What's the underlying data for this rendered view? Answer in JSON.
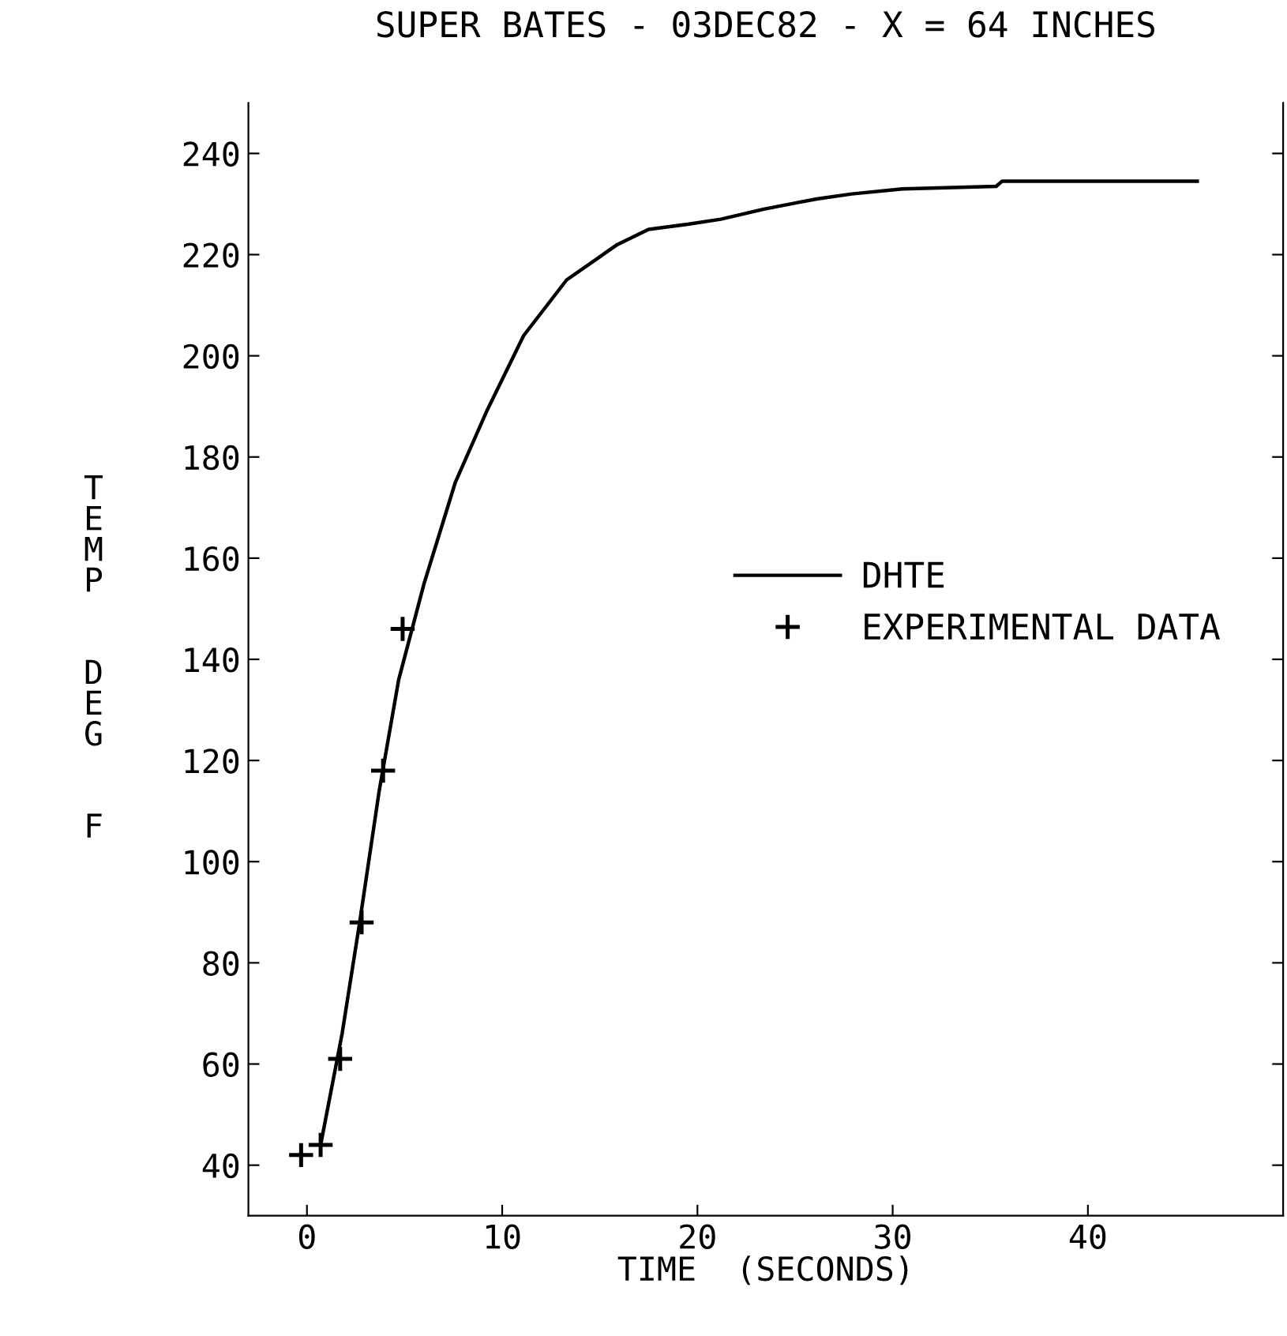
{
  "chart_data": {
    "type": "line",
    "title": "SUPER BATES - 03DEC82 - X = 64 INCHES",
    "xlabel": "TIME  (SECONDS)",
    "ylabel": "TEMP  DEG  F",
    "xlim": [
      -3,
      50
    ],
    "ylim": [
      30,
      250
    ],
    "xticks": [
      0,
      10,
      20,
      30,
      40
    ],
    "yticks": [
      40,
      60,
      80,
      100,
      120,
      140,
      160,
      180,
      200,
      220,
      240
    ],
    "grid": false,
    "legend": "center right",
    "series": [
      {
        "name": "DHTE",
        "color": "#000000",
        "marker": "none",
        "line_style": "solid",
        "x": [
          0.7,
          1.8,
          2.7,
          3.7,
          4.7,
          6,
          7.6,
          9.2,
          11.1,
          13.3,
          15.9,
          17.5,
          19.5,
          21.2,
          23.4,
          26.1,
          27.9,
          30.5,
          35.3,
          35.6,
          40,
          45.6
        ],
        "values": [
          44,
          66,
          88,
          114,
          136,
          155,
          175,
          189,
          204,
          215,
          222,
          225,
          226,
          227,
          229,
          231,
          232,
          233,
          233.5,
          234.5,
          234.5,
          234.5
        ]
      },
      {
        "name": "EXPERIMENTAL DATA",
        "type": "scatter",
        "color": "#000000",
        "marker": "cross",
        "x": [
          -0.3,
          0.7,
          1.7,
          2.8,
          3.9,
          4.9
        ],
        "values": [
          42,
          44,
          61,
          88,
          118,
          146
        ]
      }
    ]
  }
}
